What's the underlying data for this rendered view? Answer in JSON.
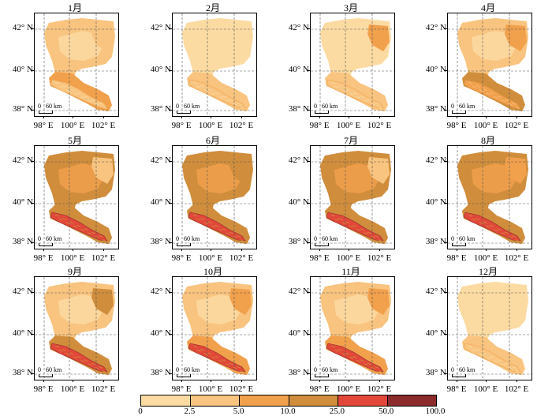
{
  "legend": {
    "labels": [
      "0",
      "2.5",
      "5.0",
      "10.0",
      "25.0",
      "50.0",
      "100.0"
    ],
    "colors": [
      "#fbdba2",
      "#f8c47f",
      "#f1a04c",
      "#d08e3d",
      "#e2473a",
      "#8b2b2b"
    ]
  },
  "axes": {
    "lat_labels": [
      "42° N",
      "40° N",
      "38° N"
    ],
    "lon_labels": [
      "98° E",
      "100° E",
      "102° E"
    ]
  },
  "scalebar": {
    "zero": "0",
    "distance": "60 km"
  },
  "months": [
    {
      "title": "1月",
      "north_class": 1,
      "south_class": 2,
      "mountain_class": 1,
      "east_class": 1
    },
    {
      "title": "2月",
      "north_class": 0,
      "south_class": 1,
      "mountain_class": 1,
      "east_class": 0
    },
    {
      "title": "3月",
      "north_class": 0,
      "south_class": 1,
      "mountain_class": 1,
      "east_class": 2
    },
    {
      "title": "4月",
      "north_class": 1,
      "south_class": 3,
      "mountain_class": 2,
      "east_class": 2
    },
    {
      "title": "5月",
      "north_class": 3,
      "south_class": 3,
      "mountain_class": 4,
      "east_class": 1
    },
    {
      "title": "6月",
      "north_class": 3,
      "south_class": 3,
      "mountain_class": 4,
      "east_class": 3
    },
    {
      "title": "7月",
      "north_class": 3,
      "south_class": 3,
      "mountain_class": 4,
      "east_class": 1
    },
    {
      "title": "8月",
      "north_class": 3,
      "south_class": 3,
      "mountain_class": 4,
      "east_class": 2
    },
    {
      "title": "9月",
      "north_class": 1,
      "south_class": 3,
      "mountain_class": 4,
      "east_class": 3
    },
    {
      "title": "10月",
      "north_class": 1,
      "south_class": 2,
      "mountain_class": 4,
      "east_class": 2
    },
    {
      "title": "11月",
      "north_class": 1,
      "south_class": 2,
      "mountain_class": 4,
      "east_class": 2
    },
    {
      "title": "12月",
      "north_class": 0,
      "south_class": 1,
      "mountain_class": 1,
      "east_class": 0
    }
  ]
}
